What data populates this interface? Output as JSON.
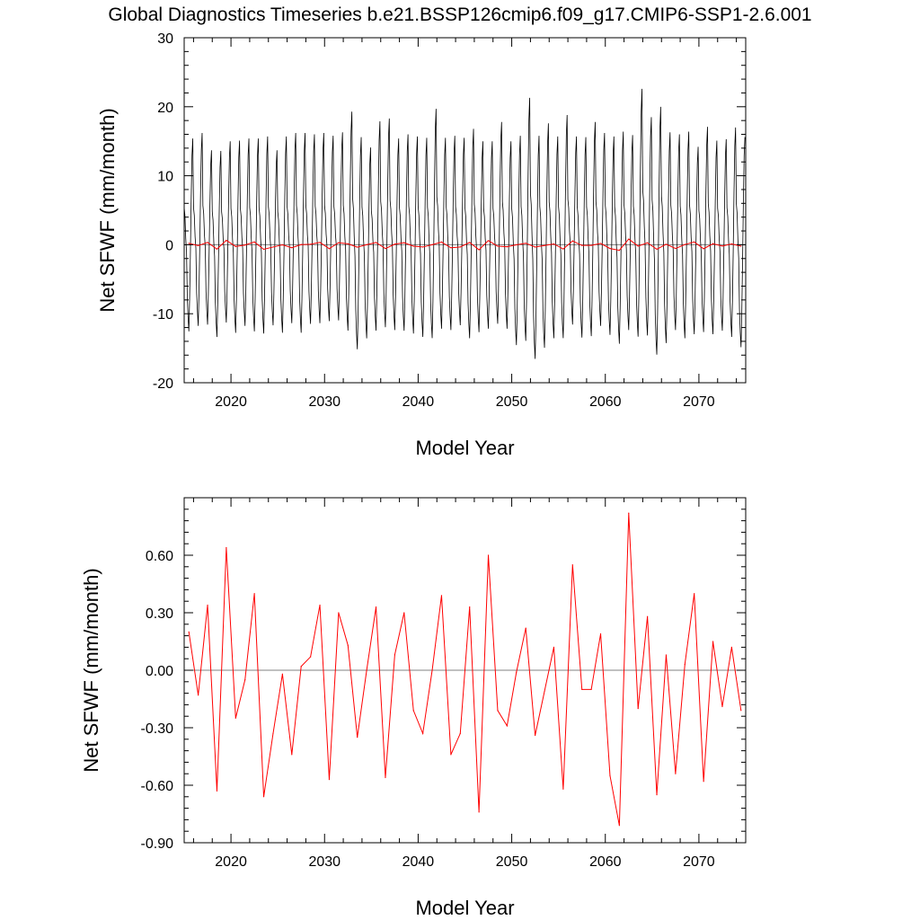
{
  "figure_title": "Global Diagnostics Timeseries b.e21.BSSP126cmip6.f09_g17.CMIP6-SSP1-2.6.001",
  "colors": {
    "monthly": "#000000",
    "annual": "#ff0000",
    "zero_line": "#808080",
    "frame": "#000000"
  },
  "chart_data": [
    {
      "type": "line",
      "xlabel": "Model Year",
      "ylabel": "Net SFWF (mm/month)",
      "xlim": [
        2015,
        2075
      ],
      "ylim": [
        -20,
        30
      ],
      "xticks": [
        2020,
        2030,
        2040,
        2050,
        2060,
        2070
      ],
      "xtick_labels": [
        "2020",
        "2030",
        "2040",
        "2050",
        "2060",
        "2070"
      ],
      "yticks": [
        -20,
        -10,
        0,
        10,
        20,
        30
      ],
      "ytick_labels": [
        "-20",
        "-10",
        "0",
        "10",
        "20",
        "30"
      ],
      "grid": false,
      "reference_line": 0,
      "series": [
        {
          "color": "#000000",
          "monthly_cycle_approx": {
            "year_start": 2015,
            "year_end": 2075,
            "annual_peak": [
              15.4,
              16.2,
              13.7,
              13.6,
              15,
              15.1,
              15.4,
              15.4,
              15.7,
              13.7,
              15.7,
              16.2,
              16.2,
              16,
              16.2,
              15.8,
              16.3,
              19.3,
              15.6,
              14.1,
              17.9,
              18.3,
              15.4,
              16,
              15.7,
              15.5,
              19.7,
              15.5,
              15.8,
              15.5,
              16.8,
              15,
              15,
              17.8,
              15,
              15.8,
              21.3,
              15.8,
              17.6,
              15.7,
              18.8,
              15.7,
              15.6,
              17.8,
              16.2,
              15.7,
              16.4,
              15.9,
              22.6,
              18.5,
              20,
              16.3,
              16,
              16.4,
              14.2,
              17.1,
              15.1,
              15.3,
              17,
              15.6
            ],
            "annual_trough": [
              -11.2,
              -10.4,
              -10.2,
              -12,
              -9.9,
              -11.4,
              -10.4,
              -11.2,
              -11.5,
              -10.3,
              -11.4,
              -10,
              -11.4,
              -10.1,
              -10,
              -9.7,
              -9.6,
              -11.1,
              -13.8,
              -12.2,
              -11.1,
              -10.6,
              -11,
              -11.1,
              -11.5,
              -12,
              -12.2,
              -10.8,
              -11,
              -10.3,
              -12.2,
              -11.3,
              -10.8,
              -10.1,
              -10.8,
              -13.2,
              -12.6,
              -15.2,
              -13.6,
              -12.2,
              -12.2,
              -10.2,
              -12.1,
              -11.9,
              -10.4,
              -11.7,
              -13,
              -11,
              -12,
              -11.8,
              -14.6,
              -12.9,
              -11,
              -12.2,
              -11.6,
              -11.3,
              -11.6,
              -11.1,
              -12,
              -13.5
            ]
          }
        },
        {
          "color": "#ff0000",
          "x": [
            2015.5,
            2016.5,
            2017.5,
            2018.5,
            2019.5,
            2020.5,
            2021.5,
            2022.5,
            2023.5,
            2024.5,
            2025.5,
            2026.5,
            2027.5,
            2028.5,
            2029.5,
            2030.5,
            2031.5,
            2032.5,
            2033.5,
            2034.5,
            2035.5,
            2036.5,
            2037.5,
            2038.5,
            2039.5,
            2040.5,
            2041.5,
            2042.5,
            2043.5,
            2044.5,
            2045.5,
            2046.5,
            2047.5,
            2048.5,
            2049.5,
            2050.5,
            2051.5,
            2052.5,
            2053.5,
            2054.5,
            2055.5,
            2056.5,
            2057.5,
            2058.5,
            2059.5,
            2060.5,
            2061.5,
            2062.5,
            2063.5,
            2064.5,
            2065.5,
            2066.5,
            2067.5,
            2068.5,
            2069.5,
            2070.5,
            2071.5,
            2072.5,
            2073.5,
            2074.5
          ],
          "values": [
            0.2,
            -0.13,
            0.34,
            -0.63,
            0.64,
            -0.25,
            -0.05,
            0.4,
            -0.66,
            -0.33,
            -0.02,
            -0.44,
            0.02,
            0.07,
            0.34,
            -0.57,
            0.3,
            0.13,
            -0.35,
            0,
            0.33,
            -0.56,
            0.08,
            0.3,
            -0.21,
            -0.33,
            0,
            0.39,
            -0.44,
            -0.33,
            0.33,
            -0.74,
            0.6,
            -0.21,
            -0.29,
            -0.01,
            0.22,
            -0.34,
            -0.11,
            0.12,
            -0.62,
            0.55,
            -0.1,
            -0.1,
            0.19,
            -0.55,
            -0.81,
            0.82,
            -0.2,
            0.28,
            -0.65,
            0.08,
            -0.54,
            0.03,
            0.4,
            -0.58,
            0.15,
            -0.19,
            0.12,
            -0.21
          ]
        }
      ]
    },
    {
      "type": "line",
      "xlabel": "Model Year",
      "ylabel": "Net SFWF (mm/month)",
      "xlim": [
        2015,
        2075
      ],
      "ylim": [
        -0.9,
        0.9
      ],
      "xticks": [
        2020,
        2030,
        2040,
        2050,
        2060,
        2070
      ],
      "xtick_labels": [
        "2020",
        "2030",
        "2040",
        "2050",
        "2060",
        "2070"
      ],
      "yticks": [
        -0.9,
        -0.6,
        -0.3,
        0,
        0.3,
        0.6
      ],
      "ytick_labels": [
        "-0.90",
        "-0.60",
        "-0.30",
        "0.00",
        "0.30",
        "0.60"
      ],
      "grid": false,
      "reference_line": 0,
      "series": [
        {
          "color": "#ff0000",
          "x": [
            2015.5,
            2016.5,
            2017.5,
            2018.5,
            2019.5,
            2020.5,
            2021.5,
            2022.5,
            2023.5,
            2024.5,
            2025.5,
            2026.5,
            2027.5,
            2028.5,
            2029.5,
            2030.5,
            2031.5,
            2032.5,
            2033.5,
            2034.5,
            2035.5,
            2036.5,
            2037.5,
            2038.5,
            2039.5,
            2040.5,
            2041.5,
            2042.5,
            2043.5,
            2044.5,
            2045.5,
            2046.5,
            2047.5,
            2048.5,
            2049.5,
            2050.5,
            2051.5,
            2052.5,
            2053.5,
            2054.5,
            2055.5,
            2056.5,
            2057.5,
            2058.5,
            2059.5,
            2060.5,
            2061.5,
            2062.5,
            2063.5,
            2064.5,
            2065.5,
            2066.5,
            2067.5,
            2068.5,
            2069.5,
            2070.5,
            2071.5,
            2072.5,
            2073.5,
            2074.5
          ],
          "values": [
            0.2,
            -0.13,
            0.34,
            -0.63,
            0.64,
            -0.25,
            -0.05,
            0.4,
            -0.66,
            -0.33,
            -0.02,
            -0.44,
            0.02,
            0.07,
            0.34,
            -0.57,
            0.3,
            0.13,
            -0.35,
            0,
            0.33,
            -0.56,
            0.08,
            0.3,
            -0.21,
            -0.33,
            0,
            0.39,
            -0.44,
            -0.33,
            0.33,
            -0.74,
            0.6,
            -0.21,
            -0.29,
            -0.01,
            0.22,
            -0.34,
            -0.11,
            0.12,
            -0.62,
            0.55,
            -0.1,
            -0.1,
            0.19,
            -0.55,
            -0.81,
            0.82,
            -0.2,
            0.28,
            -0.65,
            0.08,
            -0.54,
            0.03,
            0.4,
            -0.58,
            0.15,
            -0.19,
            0.12,
            -0.21
          ]
        }
      ]
    }
  ]
}
